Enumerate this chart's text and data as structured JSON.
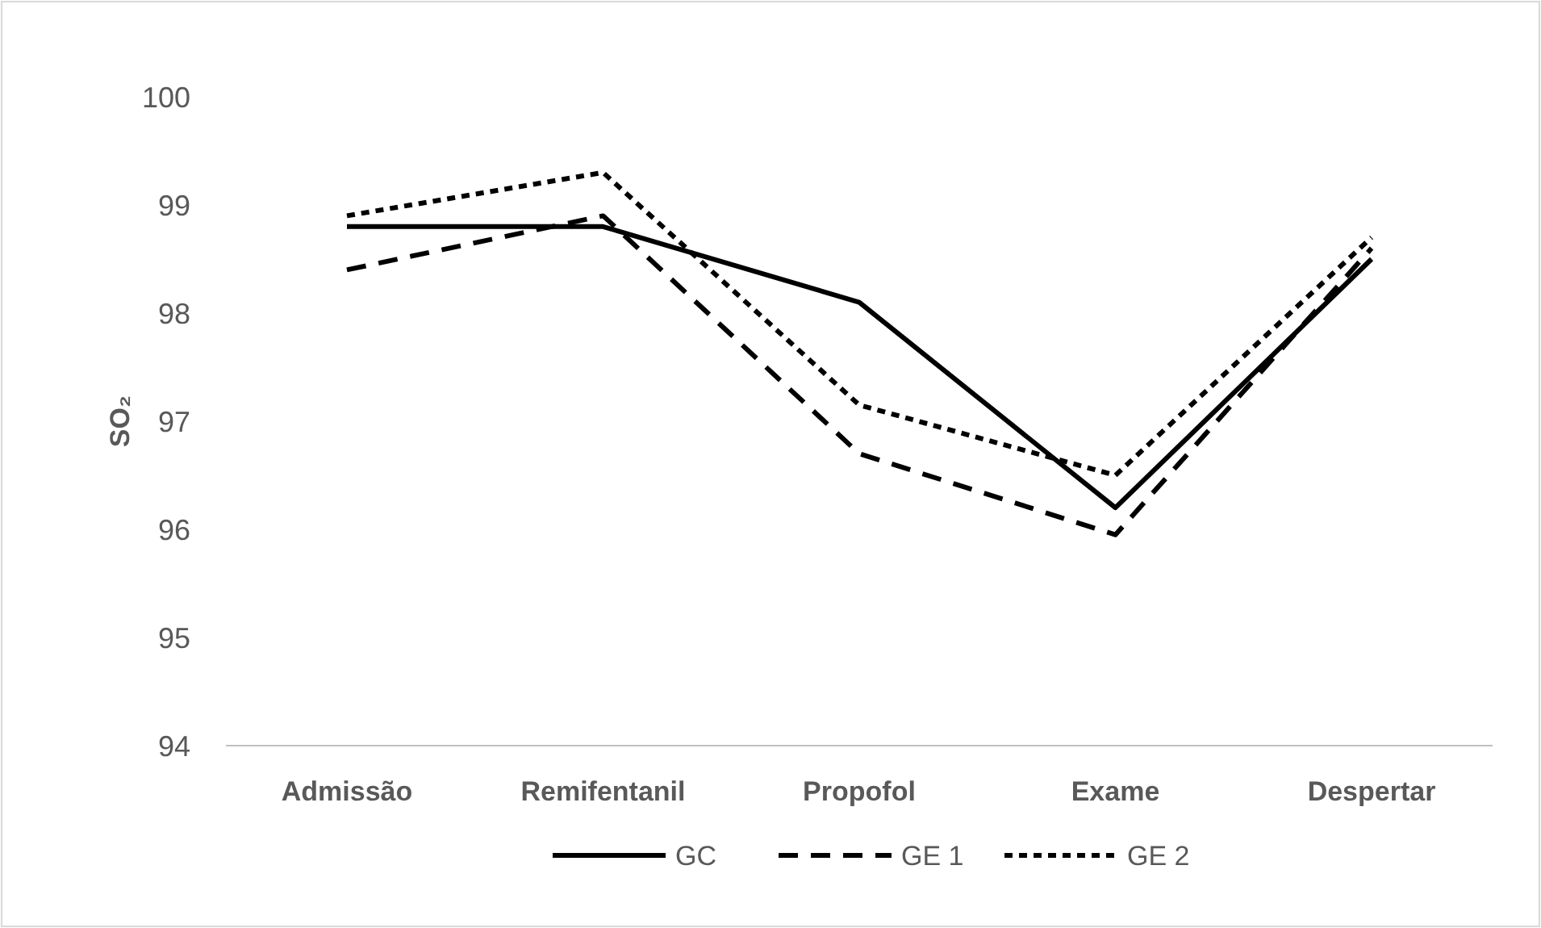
{
  "chart_data": {
    "type": "line",
    "ylabel": "SO₂",
    "categories": [
      "Admissão",
      "Remifentanil",
      "Propofol",
      "Exame",
      "Despertar"
    ],
    "series": [
      {
        "name": "GC",
        "color": "#000000",
        "line_style": "solid",
        "values": [
          98.8,
          98.8,
          98.1,
          96.2,
          98.5
        ]
      },
      {
        "name": "GE 1",
        "color": "#000000",
        "line_style": "dashed",
        "values": [
          98.4,
          98.9,
          96.7,
          95.95,
          98.6
        ]
      },
      {
        "name": "GE 2",
        "color": "#000000",
        "line_style": "dotted",
        "values": [
          98.9,
          99.3,
          97.15,
          96.5,
          98.7
        ]
      }
    ],
    "ylim": [
      94,
      100
    ],
    "yticks": [
      94,
      95,
      96,
      97,
      98,
      99,
      100
    ],
    "grid": false,
    "legend": "bottom",
    "marker": "none"
  }
}
